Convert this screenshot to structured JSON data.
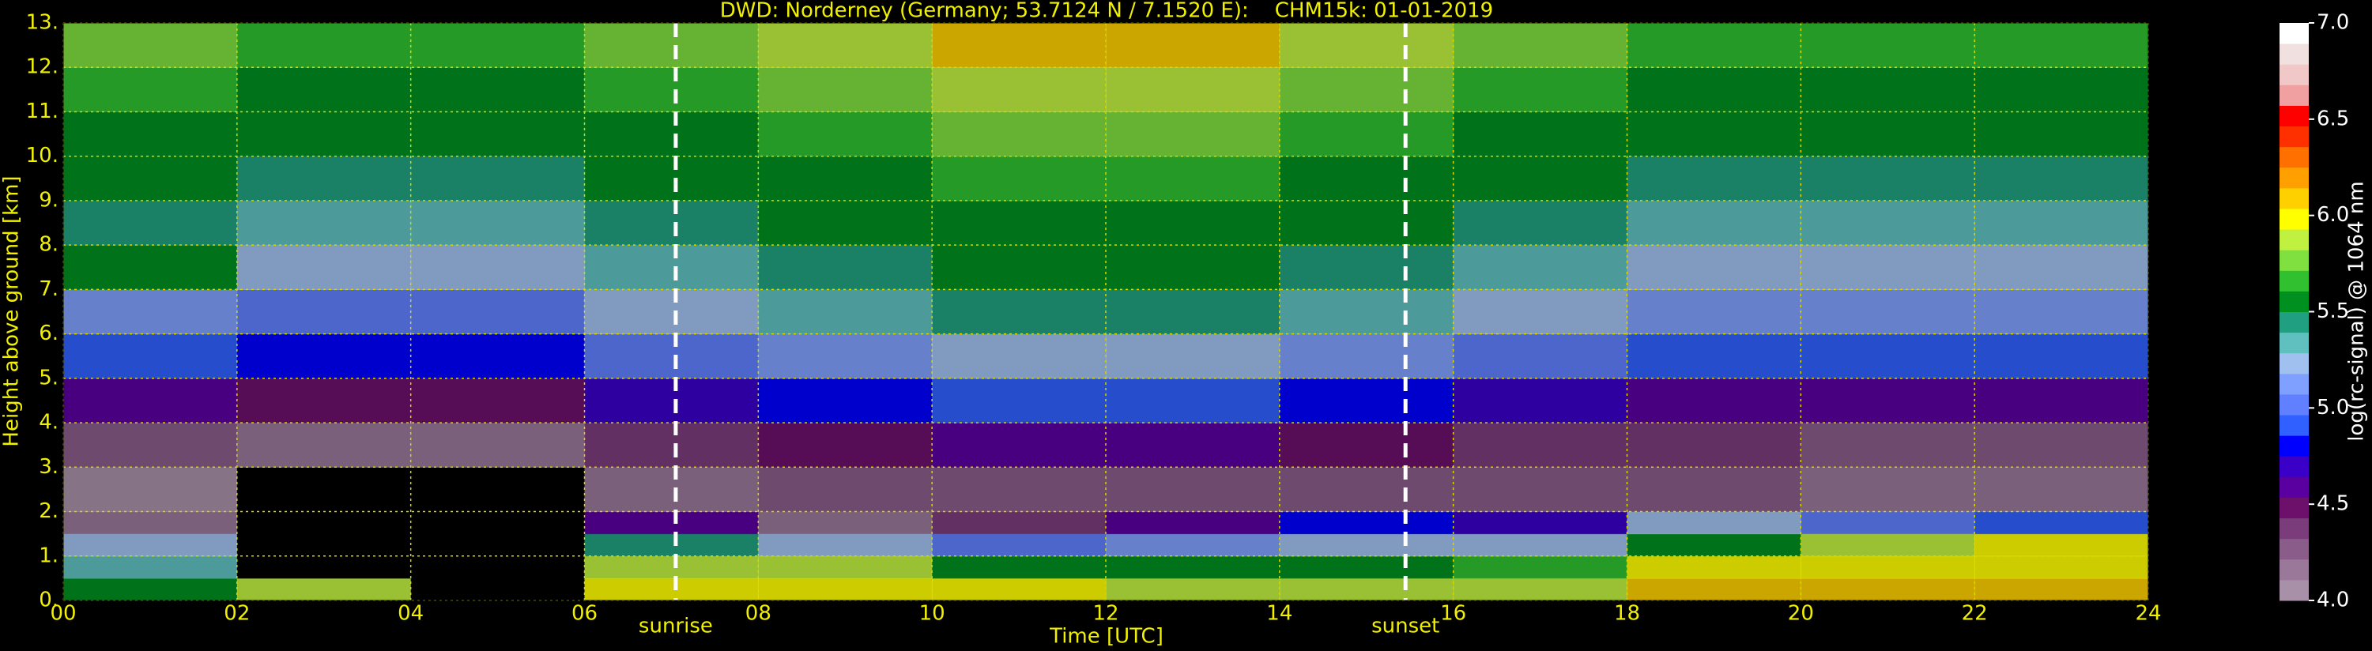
{
  "chart_data": {
    "type": "heatmap",
    "title": "DWD: Norderney (Germany; 53.7124 N / 7.1520 E):    CHM15k: 01-01-2019",
    "xlabel": "Time [UTC]",
    "ylabel": "Height above ground [km]",
    "xlim": [
      0,
      24
    ],
    "ylim": [
      0,
      13
    ],
    "xticks": [
      {
        "value": 0,
        "label": "00"
      },
      {
        "value": 2,
        "label": "02"
      },
      {
        "value": 4,
        "label": "04"
      },
      {
        "value": 6,
        "label": "06"
      },
      {
        "value": 8,
        "label": "08"
      },
      10,
      12,
      14,
      16,
      18,
      20,
      22,
      24
    ],
    "yticks": [
      {
        "value": 0,
        "label": "0."
      },
      {
        "value": 1,
        "label": "1."
      },
      {
        "value": 2,
        "label": "2."
      },
      {
        "value": 3,
        "label": "3."
      },
      {
        "value": 4,
        "label": "4."
      },
      {
        "value": 5,
        "label": "5."
      },
      {
        "value": 6,
        "label": "6."
      },
      {
        "value": 7,
        "label": "7."
      },
      {
        "value": 8,
        "label": "8."
      },
      {
        "value": 9,
        "label": "9."
      },
      {
        "value": 10,
        "label": "10."
      },
      {
        "value": 11,
        "label": "11."
      },
      {
        "value": 12,
        "label": "12."
      },
      {
        "value": 13,
        "label": "13."
      }
    ],
    "grid": true,
    "x_bins": [
      0,
      2,
      4,
      6,
      8,
      10,
      12,
      14,
      16,
      18,
      20,
      22,
      24
    ],
    "y_bins": [
      0,
      0.5,
      1,
      1.5,
      2,
      3,
      4,
      5,
      6,
      7,
      8,
      9,
      10,
      11,
      12,
      13
    ],
    "z": [
      [
        5.5,
        5.9,
        3.8,
        6.0,
        6.0,
        6.0,
        5.9,
        5.9,
        5.9,
        6.1,
        6.1,
        6.1
      ],
      [
        5.3,
        3.8,
        3.7,
        5.9,
        5.9,
        5.6,
        5.5,
        5.6,
        5.7,
        6.0,
        6.0,
        6.0
      ],
      [
        5.2,
        3.6,
        3.6,
        5.4,
        5.2,
        5.0,
        5.1,
        5.2,
        5.2,
        5.6,
        5.9,
        6.0
      ],
      [
        4.2,
        3.6,
        3.6,
        4.6,
        4.2,
        4.4,
        4.6,
        4.8,
        4.7,
        5.2,
        5.0,
        4.9
      ],
      [
        4.0,
        3.8,
        3.8,
        4.2,
        4.3,
        4.3,
        4.3,
        4.3,
        4.3,
        4.3,
        4.2,
        4.2
      ],
      [
        4.3,
        4.2,
        4.2,
        4.4,
        4.5,
        4.6,
        4.6,
        4.5,
        4.4,
        4.4,
        4.3,
        4.3
      ],
      [
        4.6,
        4.5,
        4.5,
        4.7,
        4.8,
        4.9,
        4.9,
        4.8,
        4.7,
        4.6,
        4.6,
        4.6
      ],
      [
        4.9,
        4.8,
        4.8,
        5.0,
        5.1,
        5.2,
        5.2,
        5.1,
        5.0,
        4.9,
        4.9,
        4.9
      ],
      [
        5.1,
        5.0,
        5.0,
        5.2,
        5.3,
        5.4,
        5.4,
        5.3,
        5.2,
        5.1,
        5.1,
        5.1
      ],
      [
        5.6,
        5.2,
        5.2,
        5.3,
        5.4,
        5.5,
        5.5,
        5.4,
        5.3,
        5.2,
        5.2,
        5.2
      ],
      [
        5.4,
        5.3,
        5.3,
        5.4,
        5.5,
        5.6,
        5.6,
        5.5,
        5.4,
        5.3,
        5.3,
        5.3
      ],
      [
        5.5,
        5.4,
        5.4,
        5.5,
        5.6,
        5.7,
        5.7,
        5.6,
        5.5,
        5.4,
        5.4,
        5.4
      ],
      [
        5.6,
        5.5,
        5.5,
        5.6,
        5.7,
        5.8,
        5.8,
        5.7,
        5.6,
        5.5,
        5.5,
        5.5
      ],
      [
        5.7,
        5.6,
        5.6,
        5.7,
        5.8,
        5.9,
        5.9,
        5.8,
        5.7,
        5.6,
        5.6,
        5.6
      ],
      [
        5.8,
        5.7,
        5.7,
        5.8,
        5.9,
        6.1,
        6.1,
        5.9,
        5.8,
        5.7,
        5.7,
        5.7
      ]
    ],
    "annotations": [
      {
        "text": "sunrise",
        "x": 7.05
      },
      {
        "text": "sunset",
        "x": 15.45
      }
    ],
    "colorbar": {
      "label": "log(rc-signal) @ 1064 nm",
      "lim": [
        4,
        7
      ],
      "under_color": "#000000",
      "colors": [
        "#a890a8",
        "#9a789a",
        "#8a5c8a",
        "#7a3c7a",
        "#6c106c",
        "#5a00a0",
        "#3a00c8",
        "#0000ff",
        "#3060ff",
        "#6080ff",
        "#80a0ff",
        "#a0c0f0",
        "#60c0c0",
        "#20a080",
        "#009020",
        "#30c030",
        "#80e040",
        "#c0f040",
        "#ffff00",
        "#ffd000",
        "#ffa000",
        "#ff7000",
        "#ff3000",
        "#ff0000",
        "#f0a0a0",
        "#f0c8c8",
        "#f0e0e0",
        "#ffffff"
      ],
      "ticks": [
        {
          "value": 4,
          "label": "4.0"
        },
        {
          "value": 4.5,
          "label": "4.5"
        },
        {
          "value": 5,
          "label": "5.0"
        },
        {
          "value": 5.5,
          "label": "5.5"
        },
        {
          "value": 6,
          "label": "6.0"
        },
        {
          "value": 6.5,
          "label": "6.5"
        },
        {
          "value": 7,
          "label": "7.0"
        }
      ]
    }
  }
}
